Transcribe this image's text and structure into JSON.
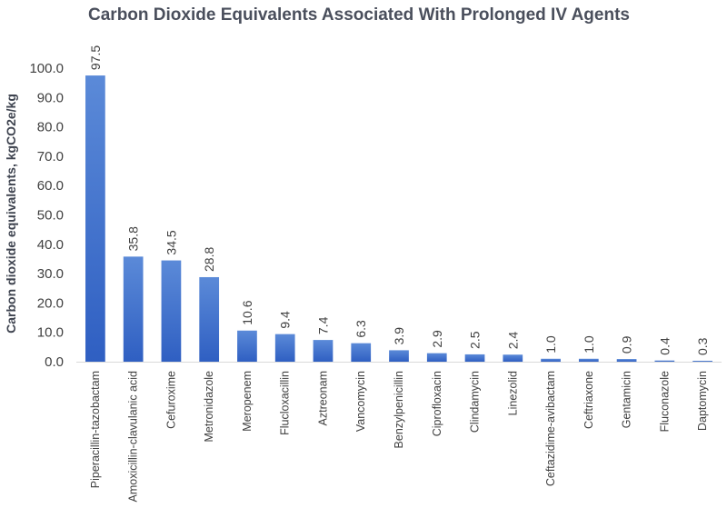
{
  "chart_data": {
    "type": "bar",
    "title": "Carbon Dioxide Equivalents Associated With Prolonged IV Agents",
    "xlabel": "",
    "ylabel": "Carbon dioxide equivalents, kgCO2e/kg",
    "ylim": [
      0,
      100
    ],
    "yticks": [
      "0.0",
      "10.0",
      "20.0",
      "30.0",
      "40.0",
      "50.0",
      "60.0",
      "70.0",
      "80.0",
      "90.0",
      "100.0"
    ],
    "categories": [
      "Piperacillin-tazobactam",
      "Amoxicillin-clavulanic acid",
      "Cefuroxime",
      "Metronidazole",
      "Meropenem",
      "Flucloxacillin",
      "Aztreonam",
      "Vancomycin",
      "Benzylpenicillin",
      "Ciprofloxacin",
      "Clindamycin",
      "Linezolid",
      "Ceftazidime-avibactam",
      "Ceftriaxone",
      "Gentamicin",
      "Fluconazole",
      "Daptomycin"
    ],
    "values": [
      97.5,
      35.8,
      34.5,
      28.8,
      10.6,
      9.4,
      7.4,
      6.3,
      3.9,
      2.9,
      2.5,
      2.4,
      1.0,
      1.0,
      0.9,
      0.4,
      0.3
    ],
    "data_labels": [
      "97.5",
      "35.8",
      "34.5",
      "28.8",
      "10.6",
      "9.4",
      "7.4",
      "6.3",
      "3.9",
      "2.9",
      "2.5",
      "2.4",
      "1.0",
      "1.0",
      "0.9",
      "0.4",
      "0.3"
    ],
    "colors": {
      "bar_top": "#5b8ad8",
      "bar_bottom": "#2f5fc2"
    },
    "grid": false,
    "legend": "none"
  }
}
